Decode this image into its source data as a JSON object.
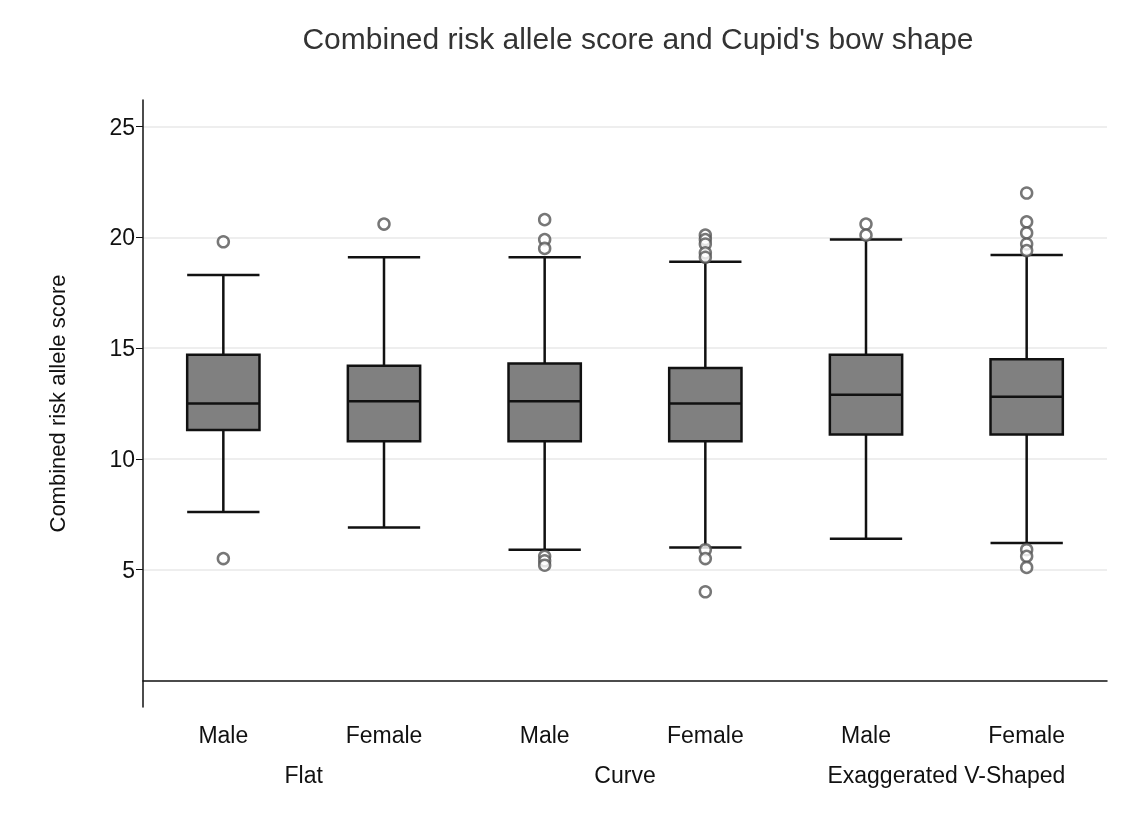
{
  "chart_data": {
    "type": "box",
    "title": "Combined risk allele score and Cupid's bow shape",
    "ylabel": "Combined risk allele score",
    "categories": [
      "Male",
      "Female",
      "Male",
      "Female",
      "Male",
      "Female"
    ],
    "annotations": [
      "Flat",
      "Curve",
      "Exaggerated V-Shaped"
    ],
    "ylim": [
      -1.2,
      26.2
    ],
    "yticks": [
      5,
      10,
      15,
      20,
      25
    ],
    "grid": "y",
    "marker": "circle",
    "series": [
      {
        "color": "#808080",
        "boxes": [
          {
            "low": 7.6,
            "q1": 11.3,
            "median": 12.5,
            "q3": 14.7,
            "high": 18.3,
            "outliers": [
              19.8,
              5.5
            ]
          },
          {
            "low": 6.9,
            "q1": 10.8,
            "median": 12.6,
            "q3": 14.2,
            "high": 19.1,
            "outliers": [
              20.6
            ]
          },
          {
            "low": 5.9,
            "q1": 10.8,
            "median": 12.6,
            "q3": 14.3,
            "high": 19.1,
            "outliers": [
              20.8,
              19.9,
              19.5,
              5.6,
              5.4,
              5.2
            ]
          },
          {
            "low": 6.0,
            "q1": 10.8,
            "median": 12.5,
            "q3": 14.1,
            "high": 18.9,
            "outliers": [
              20.1,
              19.9,
              19.7,
              19.3,
              19.1,
              5.9,
              5.5,
              4.0
            ]
          },
          {
            "low": 6.4,
            "q1": 11.1,
            "median": 12.9,
            "q3": 14.7,
            "high": 19.9,
            "outliers": [
              20.6,
              20.1
            ]
          },
          {
            "low": 6.2,
            "q1": 11.1,
            "median": 12.8,
            "q3": 14.5,
            "high": 19.2,
            "outliers": [
              22.0,
              20.7,
              20.2,
              19.7,
              19.4,
              5.9,
              5.6,
              5.1
            ]
          }
        ]
      }
    ]
  }
}
